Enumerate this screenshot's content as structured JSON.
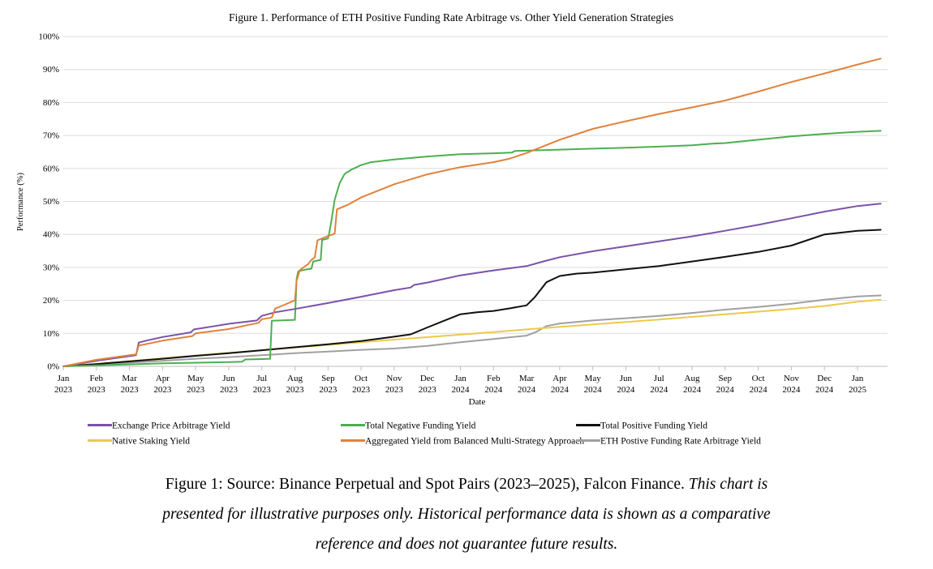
{
  "figure": {
    "chart_title": "Figure 1. Performance of ETH Positive Funding Rate Arbitrage vs. Other Yield Generation Strategies",
    "xlabel": "Date",
    "ylabel": "Performance (%)"
  },
  "chart_data": {
    "type": "line",
    "title": "Figure 1. Performance of ETH Positive Funding Rate Arbitrage vs. Other Yield Generation Strategies",
    "xlabel": "Date",
    "ylabel": "Performance (%)",
    "ylim": [
      0,
      100
    ],
    "grid": "horizontal",
    "legend_position": "bottom",
    "y_ticks": [
      {
        "value": 0,
        "label": "0%"
      },
      {
        "value": 10,
        "label": "10%"
      },
      {
        "value": 20,
        "label": "20%"
      },
      {
        "value": 30,
        "label": "30%"
      },
      {
        "value": 40,
        "label": "40%"
      },
      {
        "value": 50,
        "label": "50%"
      },
      {
        "value": 60,
        "label": "60%"
      },
      {
        "value": 70,
        "label": "70%"
      },
      {
        "value": 80,
        "label": "80%"
      },
      {
        "value": 90,
        "label": "90%"
      },
      {
        "value": 100,
        "label": "100%"
      }
    ],
    "x_ticks": [
      {
        "month": "Jan",
        "year": "2023"
      },
      {
        "month": "Feb",
        "year": "2023"
      },
      {
        "month": "Mar",
        "year": "2023"
      },
      {
        "month": "Apr",
        "year": "2023"
      },
      {
        "month": "May",
        "year": "2023"
      },
      {
        "month": "Jun",
        "year": "2023"
      },
      {
        "month": "Jul",
        "year": "2023"
      },
      {
        "month": "Aug",
        "year": "2023"
      },
      {
        "month": "Sep",
        "year": "2023"
      },
      {
        "month": "Oct",
        "year": "2023"
      },
      {
        "month": "Nov",
        "year": "2023"
      },
      {
        "month": "Dec",
        "year": "2023"
      },
      {
        "month": "Jan",
        "year": "2024"
      },
      {
        "month": "Feb",
        "year": "2024"
      },
      {
        "month": "Mar",
        "year": "2024"
      },
      {
        "month": "Apr",
        "year": "2024"
      },
      {
        "month": "May",
        "year": "2024"
      },
      {
        "month": "Jun",
        "year": "2024"
      },
      {
        "month": "Jul",
        "year": "2024"
      },
      {
        "month": "Aug",
        "year": "2024"
      },
      {
        "month": "Sep",
        "year": "2024"
      },
      {
        "month": "Oct",
        "year": "2024"
      },
      {
        "month": "Nov",
        "year": "2024"
      },
      {
        "month": "Dec",
        "year": "2024"
      },
      {
        "month": "Jan",
        "year": "2025"
      }
    ],
    "series": [
      {
        "name": "Exchange Price Arbitrage Yield",
        "color": "#7B52A8",
        "points": [
          [
            0,
            0
          ],
          [
            0.5,
            0.8
          ],
          [
            1,
            1.7
          ],
          [
            1.5,
            2.4
          ],
          [
            2,
            3.1
          ],
          [
            2.2,
            3.4
          ],
          [
            2.28,
            7.2
          ],
          [
            2.5,
            7.8
          ],
          [
            3,
            8.9
          ],
          [
            3.85,
            10.3
          ],
          [
            3.95,
            11.2
          ],
          [
            4.5,
            12.1
          ],
          [
            5,
            12.9
          ],
          [
            5.85,
            13.9
          ],
          [
            6.0,
            15.3
          ],
          [
            6.4,
            16.4
          ],
          [
            7,
            17.4
          ],
          [
            8,
            19.2
          ],
          [
            9,
            21.1
          ],
          [
            10,
            23.1
          ],
          [
            10.5,
            23.9
          ],
          [
            10.6,
            24.7
          ],
          [
            11,
            25.4
          ],
          [
            12,
            27.6
          ],
          [
            13,
            29.1
          ],
          [
            14,
            30.4
          ],
          [
            14.5,
            31.8
          ],
          [
            15,
            33.1
          ],
          [
            16,
            34.9
          ],
          [
            17,
            36.4
          ],
          [
            18,
            37.9
          ],
          [
            19,
            39.4
          ],
          [
            20,
            41.1
          ],
          [
            21,
            42.9
          ],
          [
            22,
            44.9
          ],
          [
            23,
            46.9
          ],
          [
            24,
            48.6
          ],
          [
            24.7,
            49.3
          ]
        ]
      },
      {
        "name": "Total Negative Funding Yield",
        "color": "#4CAF50",
        "points": [
          [
            0,
            0
          ],
          [
            1,
            0.3
          ],
          [
            2,
            0.6
          ],
          [
            3,
            0.9
          ],
          [
            4,
            1.1
          ],
          [
            5,
            1.3
          ],
          [
            5.4,
            1.4
          ],
          [
            5.5,
            2.1
          ],
          [
            6,
            2.2
          ],
          [
            6.25,
            2.3
          ],
          [
            6.3,
            13.8
          ],
          [
            7.0,
            14.1
          ],
          [
            7.05,
            26.5
          ],
          [
            7.1,
            28.8
          ],
          [
            7.3,
            29.3
          ],
          [
            7.5,
            29.6
          ],
          [
            7.55,
            31.8
          ],
          [
            7.78,
            32.3
          ],
          [
            7.82,
            38.3
          ],
          [
            8.0,
            38.8
          ],
          [
            8.03,
            40.0
          ],
          [
            8.1,
            44
          ],
          [
            8.2,
            50.5
          ],
          [
            8.35,
            55.5
          ],
          [
            8.5,
            58.3
          ],
          [
            8.7,
            59.6
          ],
          [
            9,
            61
          ],
          [
            9.3,
            61.9
          ],
          [
            10,
            62.7
          ],
          [
            11,
            63.6
          ],
          [
            12,
            64.3
          ],
          [
            13,
            64.6
          ],
          [
            13.55,
            64.8
          ],
          [
            13.65,
            65.3
          ],
          [
            15,
            65.7
          ],
          [
            16,
            66.0
          ],
          [
            17,
            66.3
          ],
          [
            18,
            66.6
          ],
          [
            19,
            67.0
          ],
          [
            19.6,
            67.5
          ],
          [
            20,
            67.7
          ],
          [
            21,
            68.7
          ],
          [
            22,
            69.7
          ],
          [
            23,
            70.5
          ],
          [
            24,
            71.1
          ],
          [
            24.7,
            71.4
          ]
        ]
      },
      {
        "name": "Total Positive Funding Yield",
        "color": "#111111",
        "points": [
          [
            0,
            0
          ],
          [
            1,
            0.7
          ],
          [
            2,
            1.5
          ],
          [
            3,
            2.3
          ],
          [
            4,
            3.2
          ],
          [
            5,
            4
          ],
          [
            6,
            4.9
          ],
          [
            7,
            5.8
          ],
          [
            8,
            6.7
          ],
          [
            9,
            7.7
          ],
          [
            10,
            9
          ],
          [
            10.5,
            9.7
          ],
          [
            11,
            11.8
          ],
          [
            11.5,
            13.8
          ],
          [
            12,
            15.8
          ],
          [
            12.5,
            16.4
          ],
          [
            13,
            16.8
          ],
          [
            13.5,
            17.6
          ],
          [
            14,
            18.5
          ],
          [
            14.25,
            21
          ],
          [
            14.6,
            25.5
          ],
          [
            15,
            27.4
          ],
          [
            15.5,
            28.1
          ],
          [
            16,
            28.4
          ],
          [
            17,
            29.4
          ],
          [
            18,
            30.4
          ],
          [
            19,
            31.8
          ],
          [
            20,
            33.2
          ],
          [
            21,
            34.7
          ],
          [
            22,
            36.6
          ],
          [
            22.8,
            39.3
          ],
          [
            23,
            40
          ],
          [
            24,
            41.1
          ],
          [
            24.7,
            41.4
          ]
        ]
      },
      {
        "name": "Native Staking Yield",
        "color": "#ECC94B",
        "points": [
          [
            0,
            0
          ],
          [
            2,
            1.6
          ],
          [
            4,
            3.3
          ],
          [
            6,
            4.9
          ],
          [
            8,
            6.5
          ],
          [
            10,
            8.1
          ],
          [
            12,
            9.6
          ],
          [
            14,
            11.2
          ],
          [
            16,
            12.7
          ],
          [
            18,
            14.2
          ],
          [
            20,
            15.8
          ],
          [
            22,
            17.4
          ],
          [
            23,
            18.3
          ],
          [
            24,
            19.6
          ],
          [
            24.7,
            20.2
          ]
        ]
      },
      {
        "name": "Aggregated Yield from Balanced Multi-Strategy Approach",
        "color": "#E0823C",
        "points": [
          [
            0,
            0
          ],
          [
            1,
            2
          ],
          [
            2,
            3.4
          ],
          [
            2.2,
            3.6
          ],
          [
            2.28,
            6.3
          ],
          [
            3,
            7.8
          ],
          [
            3.9,
            9.2
          ],
          [
            4,
            10
          ],
          [
            5,
            11.3
          ],
          [
            5.9,
            13.2
          ],
          [
            6.0,
            14.3
          ],
          [
            6.3,
            14.8
          ],
          [
            6.4,
            17.5
          ],
          [
            6.6,
            18.3
          ],
          [
            6.9,
            19.6
          ],
          [
            7.0,
            20.0
          ],
          [
            7.05,
            26
          ],
          [
            7.15,
            29.2
          ],
          [
            7.4,
            31
          ],
          [
            7.5,
            32.3
          ],
          [
            7.6,
            33
          ],
          [
            7.68,
            38.2
          ],
          [
            8.0,
            39.5
          ],
          [
            8.2,
            40.2
          ],
          [
            8.27,
            47.6
          ],
          [
            8.6,
            49
          ],
          [
            9,
            51.2
          ],
          [
            10,
            55.2
          ],
          [
            11,
            58.2
          ],
          [
            12,
            60.4
          ],
          [
            13,
            61.9
          ],
          [
            13.5,
            63
          ],
          [
            14,
            64.7
          ],
          [
            15,
            68.7
          ],
          [
            16,
            72
          ],
          [
            17,
            74.3
          ],
          [
            18,
            76.5
          ],
          [
            19,
            78.5
          ],
          [
            20,
            80.6
          ],
          [
            21,
            83.3
          ],
          [
            22,
            86.2
          ],
          [
            23,
            88.8
          ],
          [
            24,
            91.5
          ],
          [
            24.7,
            93.3
          ]
        ]
      },
      {
        "name": "ETH Postive Funding Rate Arbitrage Yield",
        "color": "#A0A0A0",
        "points": [
          [
            0,
            0
          ],
          [
            1,
            0.5
          ],
          [
            2,
            1.1
          ],
          [
            3,
            1.7
          ],
          [
            4,
            2.3
          ],
          [
            5,
            2.8
          ],
          [
            6,
            3.4
          ],
          [
            7,
            4
          ],
          [
            8,
            4.5
          ],
          [
            9,
            5
          ],
          [
            10,
            5.4
          ],
          [
            11,
            6.2
          ],
          [
            12,
            7.3
          ],
          [
            13,
            8.3
          ],
          [
            14,
            9.3
          ],
          [
            14.3,
            10.5
          ],
          [
            14.6,
            12.2
          ],
          [
            15,
            13
          ],
          [
            16,
            13.9
          ],
          [
            17,
            14.6
          ],
          [
            18,
            15.3
          ],
          [
            19,
            16.2
          ],
          [
            20,
            17.2
          ],
          [
            21,
            18
          ],
          [
            22,
            19
          ],
          [
            23,
            20.2
          ],
          [
            24,
            21.2
          ],
          [
            24.7,
            21.5
          ]
        ]
      }
    ]
  },
  "caption": {
    "line1_roman": "Figure 1: Source: Binance Perpetual and Spot Pairs (2023–2025), Falcon Finance.",
    "line1_italic": " This chart is",
    "line2_italic": "presented for illustrative purposes only. Historical performance data is shown as a comparative",
    "line3_italic": "reference and does not guarantee future results."
  }
}
